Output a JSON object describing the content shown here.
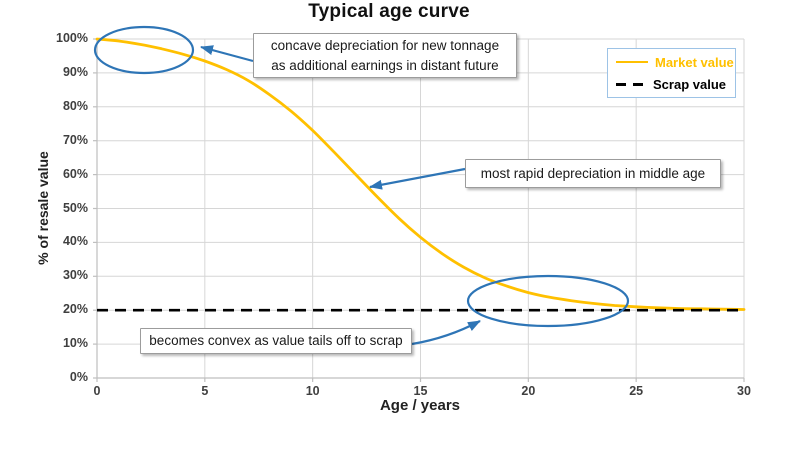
{
  "title": "Typical age curve",
  "axes": {
    "x": {
      "label": "Age / years",
      "ticks": [
        "0",
        "5",
        "10",
        "15",
        "20",
        "25",
        "30"
      ]
    },
    "y": {
      "label": "% of resale value",
      "ticks": [
        "0%",
        "10%",
        "20%",
        "30%",
        "40%",
        "50%",
        "60%",
        "70%",
        "80%",
        "90%",
        "100%"
      ]
    }
  },
  "legend": {
    "items": [
      {
        "label": "Market value",
        "color": "#FFC000",
        "style": "solid"
      },
      {
        "label": "Scrap value",
        "color": "#000000",
        "style": "dashed"
      }
    ]
  },
  "annotations": [
    {
      "lines": [
        "concave depreciation for new tonnage",
        "as additional earnings in distant future"
      ]
    },
    {
      "lines": [
        "most rapid depreciation in middle age"
      ]
    },
    {
      "lines": [
        "becomes convex as value tails off to scrap"
      ]
    }
  ],
  "colors": {
    "market": "#FFC000",
    "scrap": "#000000",
    "annotation_blue": "#2E75B6",
    "legend_border": "#9DC3E6",
    "grid": "#D6D6D6",
    "axis": "#BFBFBF"
  },
  "chart_data": {
    "type": "line",
    "title": "Typical age curve",
    "xlabel": "Age / years",
    "ylabel": "% of resale value",
    "xlim": [
      0,
      30
    ],
    "ylim": [
      0,
      100
    ],
    "grid": true,
    "legend_position": "top-right",
    "x": [
      0,
      1,
      2,
      3,
      4,
      5,
      6,
      7,
      8,
      9,
      10,
      11,
      12,
      13,
      14,
      15,
      16,
      17,
      18,
      19,
      20,
      21,
      22,
      23,
      24,
      25,
      26,
      27,
      28,
      29,
      30
    ],
    "series": [
      {
        "name": "Market value",
        "color": "#FFC000",
        "style": "solid",
        "values": [
          100,
          99.4,
          98.4,
          97.1,
          95.5,
          93.5,
          91.0,
          87.8,
          83.6,
          78.7,
          73.0,
          66.6,
          60.0,
          53.4,
          47.1,
          41.5,
          36.7,
          32.7,
          29.5,
          27.1,
          25.2,
          23.8,
          22.8,
          22.0,
          21.4,
          21.0,
          20.7,
          20.5,
          20.4,
          20.3,
          20.2
        ]
      },
      {
        "name": "Scrap value",
        "color": "#000000",
        "style": "dashed",
        "values": [
          20,
          20,
          20,
          20,
          20,
          20,
          20,
          20,
          20,
          20,
          20,
          20,
          20,
          20,
          20,
          20,
          20,
          20,
          20,
          20,
          20,
          20,
          20,
          20,
          20,
          20,
          20,
          20,
          20,
          20,
          20
        ]
      }
    ]
  }
}
